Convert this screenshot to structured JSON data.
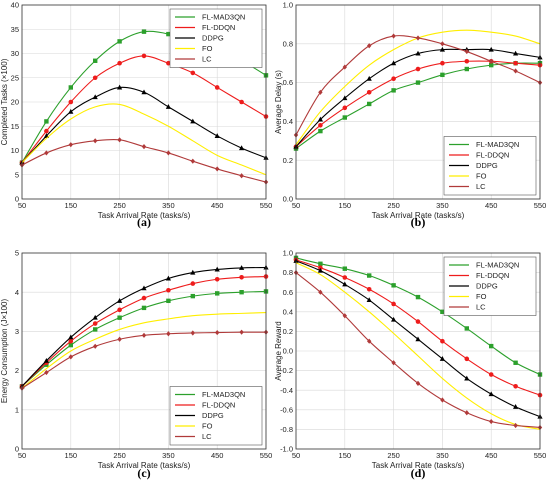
{
  "chart_data": [
    {
      "panel": "(a)",
      "type": "line",
      "xlabel": "Task Arrival Rate (tasks/s)",
      "ylabel": "Completed Tasks (×100)",
      "xlim": [
        50,
        550
      ],
      "ylim": [
        0,
        40
      ],
      "xticks": [
        50,
        150,
        250,
        350,
        450,
        550
      ],
      "yticks": [
        0,
        5,
        10,
        15,
        20,
        25,
        30,
        35,
        40
      ],
      "grid": true,
      "legend_position": "top-right",
      "x": [
        50,
        100,
        150,
        200,
        250,
        300,
        350,
        400,
        450,
        500,
        550
      ],
      "series": [
        {
          "name": "FL-MAD3QN",
          "color": "#2ca02c",
          "marker": "square",
          "values": [
            7.5,
            16,
            23,
            28.5,
            32.5,
            34.5,
            34,
            32,
            30.5,
            28.5,
            25.5
          ]
        },
        {
          "name": "FL-DDQN",
          "color": "#ee1c1c",
          "marker": "circle",
          "values": [
            7.5,
            14,
            20,
            25,
            28,
            29.5,
            28,
            26,
            23,
            20,
            17
          ]
        },
        {
          "name": "DDPG",
          "color": "#000000",
          "marker": "triangle",
          "values": [
            7.5,
            13,
            18,
            21,
            23,
            22,
            19,
            16,
            13,
            10.5,
            8.5
          ]
        },
        {
          "name": "FO",
          "color": "#ffee00",
          "marker": "none",
          "values": [
            7.5,
            12.5,
            16.5,
            19,
            19.5,
            17.5,
            15,
            12,
            9,
            7,
            5
          ]
        },
        {
          "name": "LC",
          "color": "#b03a3a",
          "marker": "diamond",
          "values": [
            7,
            9.5,
            11.2,
            12,
            12.2,
            10.8,
            9.5,
            7.8,
            6.2,
            4.8,
            3.5
          ]
        }
      ]
    },
    {
      "panel": "(b)",
      "type": "line",
      "xlabel": "Task Arrival Rate (tasks/s)",
      "ylabel": "Average Delay (s)",
      "xlim": [
        50,
        550
      ],
      "ylim": [
        0,
        1.0
      ],
      "xticks": [
        50,
        150,
        250,
        350,
        450,
        550
      ],
      "yticks": [
        0,
        0.2,
        0.4,
        0.6,
        0.8,
        1.0
      ],
      "grid": true,
      "legend_position": "bottom-right",
      "x": [
        50,
        100,
        150,
        200,
        250,
        300,
        350,
        400,
        450,
        500,
        550
      ],
      "series": [
        {
          "name": "FL-MAD3QN",
          "color": "#2ca02c",
          "marker": "square",
          "values": [
            0.26,
            0.35,
            0.42,
            0.49,
            0.56,
            0.6,
            0.64,
            0.67,
            0.69,
            0.7,
            0.7
          ]
        },
        {
          "name": "FL-DDQN",
          "color": "#ee1c1c",
          "marker": "circle",
          "values": [
            0.27,
            0.38,
            0.47,
            0.55,
            0.62,
            0.67,
            0.7,
            0.71,
            0.71,
            0.7,
            0.69
          ]
        },
        {
          "name": "DDPG",
          "color": "#000000",
          "marker": "triangle",
          "values": [
            0.27,
            0.41,
            0.52,
            0.62,
            0.7,
            0.75,
            0.77,
            0.77,
            0.77,
            0.75,
            0.73
          ]
        },
        {
          "name": "FO",
          "color": "#ffee00",
          "marker": "none",
          "values": [
            0.28,
            0.45,
            0.58,
            0.69,
            0.77,
            0.83,
            0.86,
            0.87,
            0.86,
            0.84,
            0.8
          ]
        },
        {
          "name": "LC",
          "color": "#b03a3a",
          "marker": "diamond",
          "values": [
            0.33,
            0.55,
            0.68,
            0.79,
            0.84,
            0.83,
            0.8,
            0.76,
            0.71,
            0.66,
            0.6
          ]
        }
      ]
    },
    {
      "panel": "(c)",
      "type": "line",
      "xlabel": "Task Arrival Rate (tasks/s)",
      "ylabel": "Energy Consumption (J×100)",
      "xlim": [
        50,
        550
      ],
      "ylim": [
        0,
        5
      ],
      "xticks": [
        50,
        150,
        250,
        350,
        450,
        550
      ],
      "yticks": [
        0,
        1,
        2,
        3,
        4,
        5
      ],
      "grid": true,
      "legend_position": "bottom-right",
      "x": [
        50,
        100,
        150,
        200,
        250,
        300,
        350,
        400,
        450,
        500,
        550
      ],
      "series": [
        {
          "name": "FL-MAD3QN",
          "color": "#2ca02c",
          "marker": "square",
          "values": [
            1.6,
            2.15,
            2.65,
            3.05,
            3.35,
            3.6,
            3.78,
            3.9,
            3.97,
            4.0,
            4.02
          ]
        },
        {
          "name": "FL-DDQN",
          "color": "#ee1c1c",
          "marker": "circle",
          "values": [
            1.6,
            2.2,
            2.75,
            3.2,
            3.55,
            3.85,
            4.05,
            4.22,
            4.33,
            4.38,
            4.4
          ]
        },
        {
          "name": "DDPG",
          "color": "#000000",
          "marker": "triangle",
          "values": [
            1.6,
            2.25,
            2.85,
            3.35,
            3.78,
            4.1,
            4.35,
            4.5,
            4.58,
            4.62,
            4.63
          ]
        },
        {
          "name": "FO",
          "color": "#ffee00",
          "marker": "none",
          "values": [
            1.55,
            2.05,
            2.5,
            2.8,
            3.05,
            3.22,
            3.32,
            3.4,
            3.44,
            3.46,
            3.48
          ]
        },
        {
          "name": "LC",
          "color": "#b03a3a",
          "marker": "diamond",
          "values": [
            1.55,
            1.95,
            2.35,
            2.62,
            2.8,
            2.9,
            2.94,
            2.96,
            2.97,
            2.98,
            2.98
          ]
        }
      ]
    },
    {
      "panel": "(d)",
      "type": "line",
      "xlabel": "Task Arrival Rate (tasks/s)",
      "ylabel": "Average Reward",
      "xlim": [
        50,
        550
      ],
      "ylim": [
        -1.0,
        1.0
      ],
      "xticks": [
        50,
        150,
        250,
        350,
        450,
        550
      ],
      "yticks": [
        -1.0,
        -0.8,
        -0.6,
        -0.4,
        -0.2,
        0,
        0.2,
        0.4,
        0.6,
        0.8,
        1.0
      ],
      "grid": true,
      "legend_position": "top-right",
      "x": [
        50,
        100,
        150,
        200,
        250,
        300,
        350,
        400,
        450,
        500,
        550
      ],
      "series": [
        {
          "name": "FL-MAD3QN",
          "color": "#2ca02c",
          "marker": "square",
          "values": [
            0.95,
            0.89,
            0.84,
            0.77,
            0.67,
            0.55,
            0.4,
            0.23,
            0.05,
            -0.12,
            -0.24
          ]
        },
        {
          "name": "FL-DDQN",
          "color": "#ee1c1c",
          "marker": "circle",
          "values": [
            0.93,
            0.85,
            0.75,
            0.63,
            0.48,
            0.3,
            0.1,
            -0.08,
            -0.24,
            -0.36,
            -0.45
          ]
        },
        {
          "name": "DDPG",
          "color": "#000000",
          "marker": "triangle",
          "values": [
            0.92,
            0.82,
            0.68,
            0.52,
            0.32,
            0.12,
            -0.08,
            -0.28,
            -0.44,
            -0.57,
            -0.67
          ]
        },
        {
          "name": "FO",
          "color": "#ffee00",
          "marker": "none",
          "values": [
            0.9,
            0.78,
            0.6,
            0.4,
            0.18,
            -0.05,
            -0.28,
            -0.48,
            -0.64,
            -0.75,
            -0.8
          ]
        },
        {
          "name": "LC",
          "color": "#b03a3a",
          "marker": "diamond",
          "values": [
            0.8,
            0.6,
            0.36,
            0.1,
            -0.12,
            -0.33,
            -0.5,
            -0.63,
            -0.72,
            -0.76,
            -0.78
          ]
        }
      ]
    }
  ]
}
